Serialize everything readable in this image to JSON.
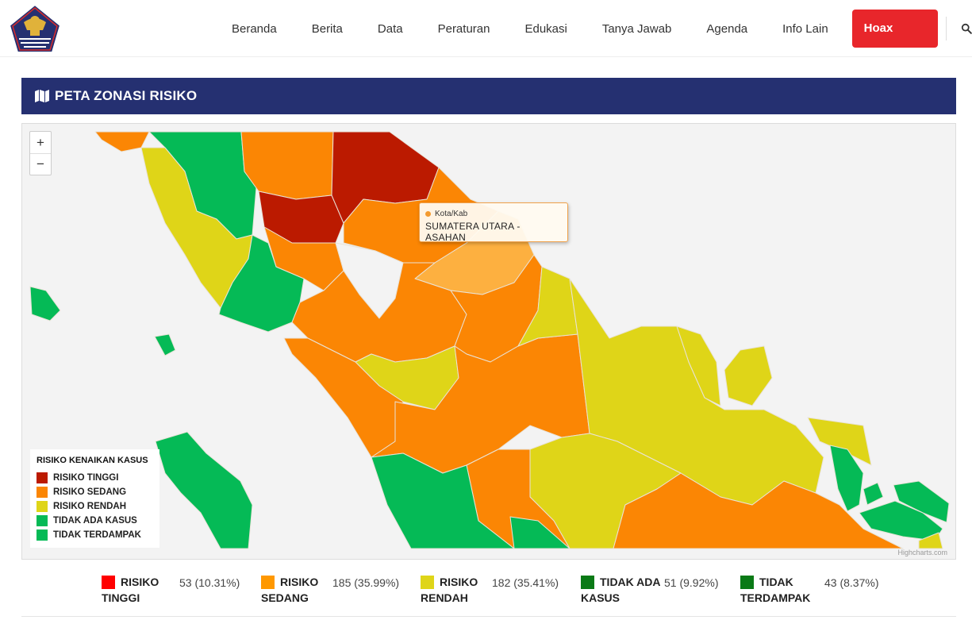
{
  "header": {
    "logo_text": "GUGUS TUGAS PERCEPATAN PENANGANAN COVID-19",
    "nav": [
      {
        "label": "Beranda"
      },
      {
        "label": "Berita"
      },
      {
        "label": "Data"
      },
      {
        "label": "Peraturan"
      },
      {
        "label": "Edukasi"
      },
      {
        "label": "Tanya Jawab"
      },
      {
        "label": "Agenda"
      },
      {
        "label": "Info Lain"
      }
    ],
    "hoax_button": "Hoax Buster",
    "search_icon": "search-icon"
  },
  "section": {
    "title": "PETA ZONASI RISIKO",
    "icon": "map-icon"
  },
  "map": {
    "zoom_in": "+",
    "zoom_out": "−",
    "tooltip": {
      "series": "Kota/Kab",
      "region": "SUMATERA UTARA - ASAHAN"
    },
    "legend": {
      "title": "RISIKO KENAIKAN KASUS",
      "items": [
        {
          "label": "RISIKO TINGGI",
          "color": "#bb1a00"
        },
        {
          "label": "RISIKO SEDANG",
          "color": "#fb8604"
        },
        {
          "label": "RISIKO RENDAH",
          "color": "#dfd518"
        },
        {
          "label": "TIDAK ADA KASUS",
          "color": "#05ba56"
        },
        {
          "label": "TIDAK TERDAMPAK",
          "color": "#05ba56"
        }
      ]
    },
    "credits": "Highcharts.com"
  },
  "stats": [
    {
      "label_line1": "RISIKO",
      "label_line2": "TINGGI",
      "value": "53 (10.31%)",
      "color": "#ff0000"
    },
    {
      "label_line1": "RISIKO",
      "label_line2": "SEDANG",
      "value": "185 (35.99%)",
      "color": "#ff9800"
    },
    {
      "label_line1": "RISIKO",
      "label_line2": "RENDAH",
      "value": "182 (35.41%)",
      "color": "#dfd518"
    },
    {
      "label_line1": "TIDAK ADA",
      "label_line2": "KASUS",
      "value": "51 (9.92%)",
      "color": "#0a7a16"
    },
    {
      "label_line1": "TIDAK",
      "label_line2": "TERDAMPAK",
      "value": "43 (8.37%)",
      "color": "#0a7a16"
    }
  ]
}
